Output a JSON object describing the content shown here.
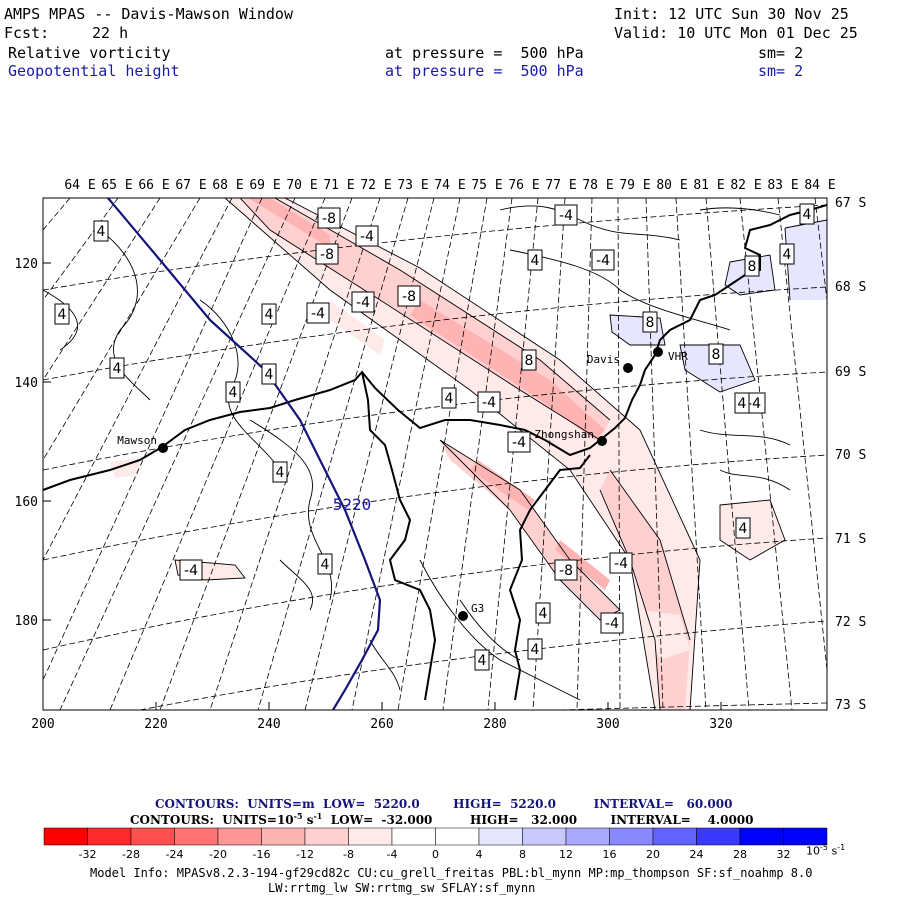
{
  "header": {
    "title": "AMPS MPAS -- Davis-Mawson Window",
    "init": "Init: 12 UTC Sun 30 Nov 25",
    "forecast_label": "Fcst:",
    "forecast_hours": "22 h",
    "valid": "Valid: 10 UTC Mon 01 Dec 25",
    "field1": {
      "name": "Relative vorticity",
      "level": "at pressure =  500 hPa",
      "smooth": "sm= 2"
    },
    "field2": {
      "name": "Geopotential height",
      "level": "at pressure =  500 hPa",
      "smooth": "sm= 2"
    }
  },
  "map": {
    "lon_labels": [
      "64 E",
      "65 E",
      "66 E",
      "67 E",
      "68 E",
      "69 E",
      "70 E",
      "71 E",
      "72 E",
      "73 E",
      "74 E",
      "75 E",
      "76 E",
      "77 E",
      "78 E",
      "79 E",
      "80 E",
      "81 E",
      "82 E",
      "83 E",
      "84 E"
    ],
    "lat_labels": [
      "67 S",
      "68 S",
      "69 S",
      "70 S",
      "71 S",
      "72 S",
      "73 S"
    ],
    "x_ticks": [
      "200",
      "220",
      "240",
      "260",
      "280",
      "300",
      "320"
    ],
    "y_ticks": [
      "120",
      "140",
      "160",
      "180"
    ],
    "stations": [
      {
        "name": "Mawson"
      },
      {
        "name": "Davis"
      },
      {
        "name": "Zhongshan"
      },
      {
        "name": "VHR"
      },
      {
        "name": "G3"
      }
    ],
    "height_contour_label": "5220",
    "vorticity_labels": [
      "-8",
      "-4",
      "-8",
      "-4",
      "-8",
      "4",
      "4",
      "4",
      "4",
      "4",
      "4",
      "4",
      "-4",
      "4",
      "4",
      "-4",
      "-4",
      "-4",
      "8",
      "8",
      "8",
      "8",
      "4",
      "4",
      "-4",
      "-4",
      "-8",
      "-4",
      "4",
      "-4",
      "4",
      "4",
      "4",
      "4",
      "4",
      "-4"
    ]
  },
  "legend": {
    "line1": "CONTOURS:  UNITS=m  LOW=  5220.0        HIGH=  5220.0         INTERVAL=   60.000",
    "line2_prefix": "CONTOURS:  UNITS=10",
    "line2_suffix": " s",
    "line2_rest": "  LOW=  -32.000         HIGH=   32.000        INTERVAL=    4.0000",
    "exp1": "-5",
    "exp2": "-1",
    "colorbar_labels": [
      "-32",
      "-28",
      "-24",
      "-20",
      "-16",
      "-12",
      "-8",
      "-4",
      "0",
      "4",
      "8",
      "12",
      "16",
      "20",
      "24",
      "28",
      "32"
    ],
    "colorbar_unit": "10",
    "colorbar_unit_exp": "-5",
    "colorbar_unit_s": "s",
    "colorbar_unit_s_exp": "-1",
    "colors": [
      "#ff0000",
      "#ff2a2a",
      "#ff5050",
      "#ff7474",
      "#ff9696",
      "#ffb4b4",
      "#ffd0d0",
      "#ffeaea",
      "#ffffff",
      "#ffffff",
      "#e6e6ff",
      "#c8c8ff",
      "#a8a8ff",
      "#8888ff",
      "#6262ff",
      "#3a3aff",
      "#0000ff"
    ]
  },
  "model_info": {
    "line1": "Model Info: MPASv8.2.3-194-gf29cd82c CU:cu_grell_freitas PBL:bl_mynn MP:mp_thompson SF:sf_noahmp 8.0",
    "line2": "LW:rrtmg_lw SW:rrtmg_sw SFLAY:sf_mynn"
  }
}
